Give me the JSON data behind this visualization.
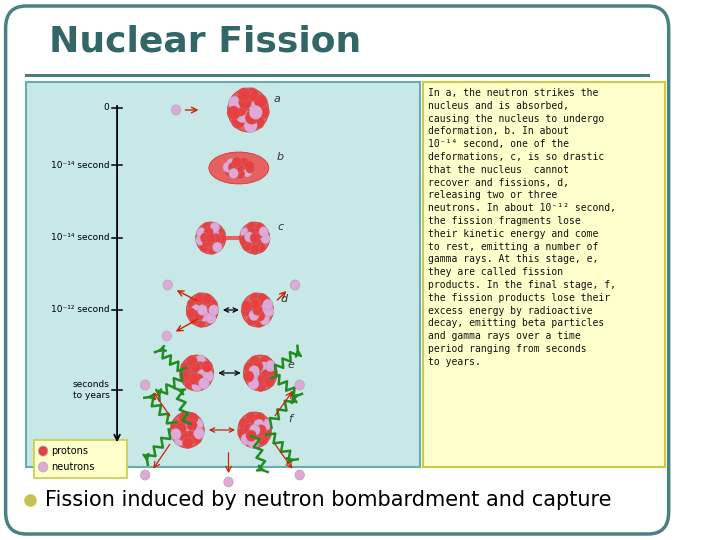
{
  "title": "Nuclear Fission",
  "title_color": "#336666",
  "title_fontsize": 26,
  "bg_color": "#ffffff",
  "border_color": "#4a8080",
  "divider_color": "#4a7c7c",
  "diagram_bg": "#c8e8e8",
  "diagram_border": "#6aacac",
  "text_box_bg": "#ffffcc",
  "text_box_border": "#cccc44",
  "bullet_color": "#c8c050",
  "bullet_text": "Fission induced by neutron bombardment and capture",
  "bullet_fontsize": 15,
  "description_text": "In a, the neutron strikes the\nnucleus and is absorbed,\ncausing the nucleus to undergo\ndeformation, b. In about\n10⁻¹⁴ second, one of the\ndeformations, c, is so drastic\nthat the nucleus  cannot\nrecover and fissions, d,\nreleasing two or three\nneutrons. In about 10⁻¹² second,\nthe fission fragments lose\ntheir kinetic energy and come\nto rest, emitting a number of\ngamma rays. At this stage, e,\nthey are called fission\nproducts. In the final stage, f,\nthe fission products lose their\nexcess energy by radioactive\ndecay, emitting beta particles\nand gamma rays over a time\nperiod ranging from seconds\nto years.",
  "desc_fontsize": 7.0,
  "timeline_labels": [
    "0",
    "10⁻¹⁴ second",
    "10⁻¹⁴ second",
    "10⁻¹² second",
    "seconds\nto years"
  ],
  "legend_protons": "protons",
  "legend_neutrons": "neutrons",
  "proton_color": "#e84040",
  "neutron_color": "#e0a8d8"
}
